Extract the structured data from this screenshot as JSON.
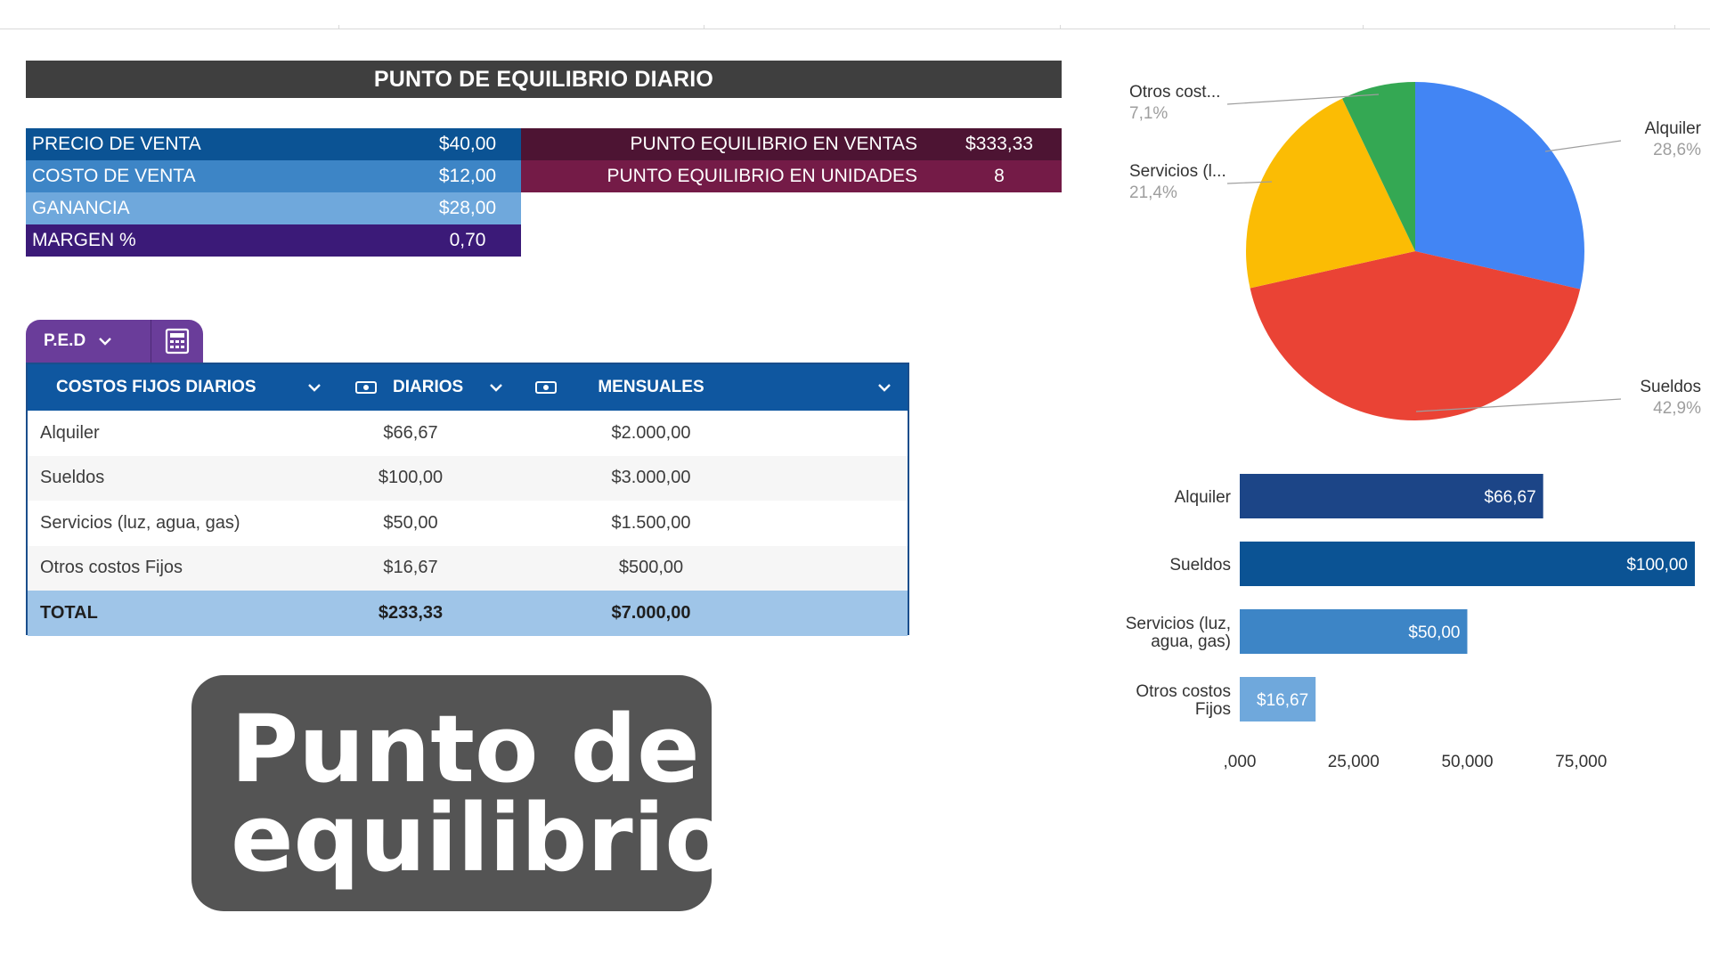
{
  "title": "PUNTO DE EQUILIBRIO DIARIO",
  "metrics": [
    {
      "label": "PRECIO DE VENTA",
      "value": "$40,00",
      "color": "#0b5394"
    },
    {
      "label": "COSTO DE VENTA",
      "value": "$12,00",
      "color": "#3d85c6"
    },
    {
      "label": "GANANCIA",
      "value": "$28,00",
      "color": "#6fa8dc"
    },
    {
      "label": "MARGEN %",
      "value": "0,70",
      "color": "#3b1a78"
    }
  ],
  "results": [
    {
      "label": "PUNTO EQUILIBRIO EN VENTAS",
      "value": "$333,33",
      "color": "#4d1433"
    },
    {
      "label": "PUNTO EQUILIBRIO EN UNIDADES",
      "value": "8",
      "color": "#741b47"
    }
  ],
  "tabs": {
    "active": "P.E.D",
    "icons": [
      "chevron-down-icon",
      "calculator-icon"
    ]
  },
  "table": {
    "headers": [
      "COSTOS FIJOS DIARIOS",
      "DIARIOS",
      "MENSUALES"
    ],
    "header_icons": [
      "money-icon",
      "money-icon"
    ],
    "rows": [
      {
        "name": "Alquiler",
        "diarios": "$66,67",
        "mensuales": "$2.000,00"
      },
      {
        "name": "Sueldos",
        "diarios": "$100,00",
        "mensuales": "$3.000,00"
      },
      {
        "name": "Servicios (luz, agua, gas)",
        "diarios": "$50,00",
        "mensuales": "$1.500,00"
      },
      {
        "name": "Otros costos Fijos",
        "diarios": "$16,67",
        "mensuales": "$500,00"
      }
    ],
    "total": {
      "name": "TOTAL",
      "diarios": "$233,33",
      "mensuales": "$7.000,00"
    }
  },
  "badge": {
    "line1": "Punto de",
    "line2": "equilibrio"
  },
  "chart_data": [
    {
      "type": "pie",
      "slices": [
        {
          "label": "Alquiler",
          "pct_label": "28,6%",
          "value": 28.6,
          "color": "#4285f4"
        },
        {
          "label": "Sueldos",
          "pct_label": "42,9%",
          "value": 42.9,
          "color": "#ea4335"
        },
        {
          "label": "Servicios (l...",
          "pct_label": "21,4%",
          "value": 21.4,
          "color": "#fbbc04"
        },
        {
          "label": "Otros cost...",
          "pct_label": "7,1%",
          "value": 7.1,
          "color": "#34a853"
        }
      ]
    },
    {
      "type": "bar",
      "orientation": "horizontal",
      "categories": [
        "Alquiler",
        "Sueldos",
        "Servicios (luz, agua, gas)",
        "Otros costos Fijos"
      ],
      "category_lines": [
        [
          "Alquiler"
        ],
        [
          "Sueldos"
        ],
        [
          "Servicios (luz,",
          "agua, gas)"
        ],
        [
          "Otros costos",
          "Fijos"
        ]
      ],
      "values": [
        66.67,
        100,
        50,
        16.67
      ],
      "data_labels": [
        "$66,67",
        "$100,00",
        "$50,00",
        "$16,67"
      ],
      "colors": [
        "#1c4587",
        "#0b5394",
        "#3d85c6",
        "#6fa8dc"
      ],
      "x_ticks": [
        0,
        25,
        50,
        75
      ],
      "x_tick_labels": [
        ",000",
        "25,000",
        "50,000",
        "75,000"
      ]
    }
  ]
}
